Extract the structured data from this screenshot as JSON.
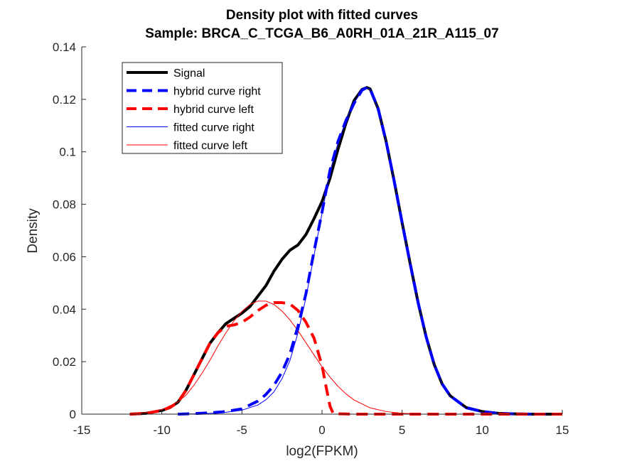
{
  "chart_data": {
    "type": "line",
    "title": "Density plot with fitted curves",
    "subtitle": "Sample: BRCA_C_TCGA_B6_A0RH_01A_21R_A115_07",
    "xlabel": "log2(FPKM)",
    "ylabel": "Density",
    "xlim": [
      -15,
      15
    ],
    "ylim": [
      0,
      0.14
    ],
    "xticks": [
      -15,
      -10,
      -5,
      0,
      5,
      10,
      15
    ],
    "xtick_labels": [
      "-15",
      "-10",
      "-5",
      "0",
      "5",
      "10",
      "15"
    ],
    "yticks": [
      0,
      0.02,
      0.04,
      0.06,
      0.08,
      0.1,
      0.12,
      0.14
    ],
    "ytick_labels": [
      "0",
      "0.02",
      "0.04",
      "0.06",
      "0.08",
      "0.1",
      "0.12",
      "0.14"
    ],
    "grid": false,
    "legend_position": "top-left",
    "series": [
      {
        "name": "Signal",
        "color": "#000000",
        "style": "solid-thick",
        "x": [
          -12,
          -11,
          -10,
          -9.5,
          -9,
          -8.5,
          -8,
          -7.5,
          -7,
          -6.5,
          -6,
          -5.5,
          -5,
          -4.5,
          -4,
          -3.5,
          -3,
          -2.5,
          -2,
          -1.5,
          -1,
          -0.5,
          0,
          0.5,
          1,
          1.5,
          2,
          2.5,
          2.8,
          3,
          3.5,
          4,
          4.5,
          5,
          5.5,
          6,
          6.5,
          7,
          7.5,
          8,
          9,
          10,
          11,
          12,
          13,
          14.5
        ],
        "y": [
          0,
          0.0003,
          0.0014,
          0.0025,
          0.0045,
          0.009,
          0.015,
          0.021,
          0.027,
          0.031,
          0.0345,
          0.0365,
          0.0385,
          0.041,
          0.045,
          0.049,
          0.0545,
          0.059,
          0.0625,
          0.0645,
          0.0685,
          0.0745,
          0.081,
          0.09,
          0.101,
          0.111,
          0.1195,
          0.1238,
          0.1245,
          0.124,
          0.1165,
          0.104,
          0.089,
          0.073,
          0.0575,
          0.0425,
          0.0295,
          0.019,
          0.0115,
          0.007,
          0.0025,
          0.001,
          0.0003,
          0.0001,
          0,
          0
        ]
      },
      {
        "name": "hybrid curve right",
        "color": "#0000ff",
        "style": "dashed-thick",
        "x": [
          -9,
          -8,
          -7,
          -6,
          -5,
          -4,
          -3.5,
          -3,
          -2.5,
          -2,
          -1.5,
          -1,
          -0.5,
          0,
          0.5,
          1,
          1.5,
          2,
          2.5,
          2.8,
          3,
          3.5,
          4,
          4.5,
          5,
          5.5,
          6,
          6.5,
          7,
          7.5,
          8,
          9,
          10,
          11,
          12,
          13,
          14
        ],
        "y": [
          0,
          0.0002,
          0.0005,
          0.001,
          0.002,
          0.005,
          0.0075,
          0.011,
          0.016,
          0.023,
          0.0335,
          0.046,
          0.062,
          0.077,
          0.093,
          0.104,
          0.112,
          0.1185,
          0.1235,
          0.1245,
          0.124,
          0.1165,
          0.104,
          0.089,
          0.073,
          0.0575,
          0.0425,
          0.0295,
          0.019,
          0.0115,
          0.007,
          0.0025,
          0.001,
          0.0003,
          0.0001,
          0,
          0
        ]
      },
      {
        "name": "hybrid curve left",
        "color": "#ff0000",
        "style": "dashed-thick",
        "x": [
          -12,
          -11,
          -10,
          -9.5,
          -9,
          -8.5,
          -8,
          -7.5,
          -7,
          -6.5,
          -6,
          -5.5,
          -5,
          -4.5,
          -4,
          -3.5,
          -3,
          -2.5,
          -2,
          -1.5,
          -1,
          -0.5,
          0,
          0.3,
          0.5,
          0.7,
          2,
          5,
          10,
          15
        ],
        "y": [
          0,
          0.0003,
          0.0014,
          0.0025,
          0.0045,
          0.009,
          0.015,
          0.021,
          0.027,
          0.031,
          0.0335,
          0.034,
          0.035,
          0.037,
          0.0395,
          0.0415,
          0.0425,
          0.0425,
          0.042,
          0.0395,
          0.035,
          0.029,
          0.0185,
          0.009,
          0.003,
          0.0002,
          0,
          0,
          0,
          0
        ]
      },
      {
        "name": "fitted curve right",
        "color": "#0000ff",
        "style": "solid-thin",
        "x": [
          -9,
          -8,
          -7,
          -6,
          -5,
          -4,
          -3.5,
          -3,
          -2.5,
          -2,
          -1.5,
          -1,
          -0.5,
          0,
          0.5,
          1,
          1.5,
          2,
          2.5,
          2.8,
          3,
          3.5,
          4,
          4.5,
          5,
          5.5,
          6,
          6.5,
          7,
          7.5,
          8,
          9,
          10,
          11,
          12,
          13,
          14
        ],
        "y": [
          0,
          0.0001,
          0.0003,
          0.0007,
          0.0015,
          0.0035,
          0.0055,
          0.0085,
          0.0135,
          0.0205,
          0.031,
          0.0445,
          0.0605,
          0.0765,
          0.0925,
          0.1035,
          0.112,
          0.1185,
          0.1235,
          0.1245,
          0.124,
          0.1165,
          0.104,
          0.089,
          0.073,
          0.0575,
          0.0425,
          0.0295,
          0.019,
          0.0115,
          0.0065,
          0.002,
          0.0006,
          0.0002,
          0,
          0,
          0
        ]
      },
      {
        "name": "fitted curve left",
        "color": "#ff0000",
        "style": "solid-thin",
        "x": [
          -12,
          -11,
          -10,
          -9,
          -8.5,
          -8,
          -7.5,
          -7,
          -6.5,
          -6,
          -5.5,
          -5,
          -4.5,
          -4,
          -3.5,
          -3,
          -2.5,
          -2,
          -1.5,
          -1,
          -0.5,
          0,
          0.5,
          1,
          1.5,
          2,
          3,
          4,
          5,
          6
        ],
        "y": [
          0.0001,
          0.0006,
          0.0017,
          0.0046,
          0.0072,
          0.011,
          0.0155,
          0.0205,
          0.026,
          0.031,
          0.0355,
          0.0392,
          0.0418,
          0.0431,
          0.0431,
          0.0418,
          0.0393,
          0.0359,
          0.0318,
          0.0272,
          0.0226,
          0.0181,
          0.0141,
          0.0106,
          0.0077,
          0.0054,
          0.0024,
          0.001,
          0.0003,
          0.0001
        ]
      }
    ]
  }
}
